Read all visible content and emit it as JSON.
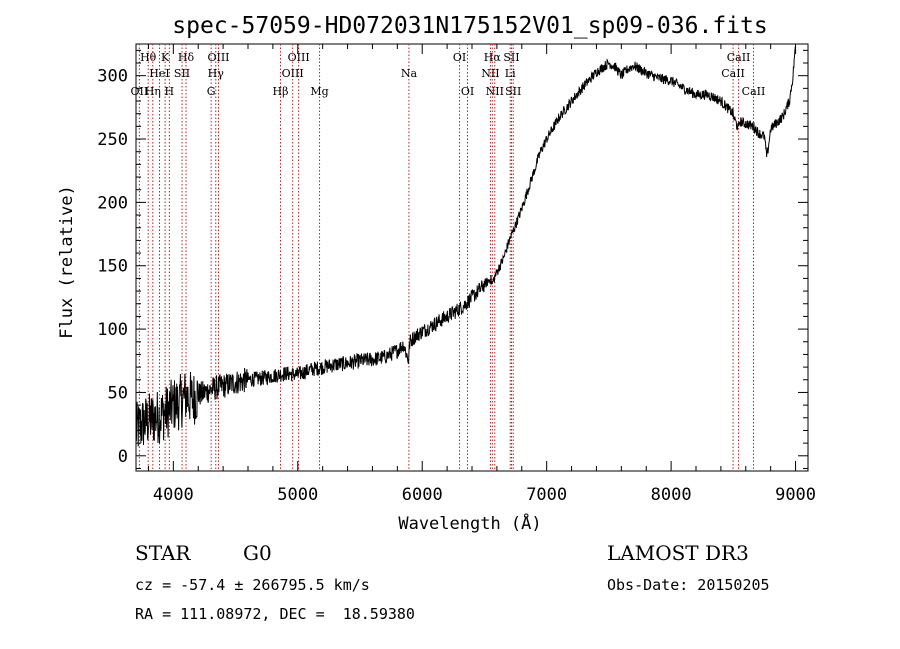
{
  "chart_data": {
    "type": "line",
    "title": "spec-57059-HD072031N175152V01_sp09-036.fits",
    "xlabel": "Wavelength (Å)",
    "ylabel": "Flux (relative)",
    "xlim": [
      3700,
      9100
    ],
    "ylim": [
      -12,
      325
    ],
    "xticks": [
      4000,
      5000,
      6000,
      7000,
      8000,
      9000
    ],
    "yticks": [
      0,
      50,
      100,
      150,
      200,
      250,
      300
    ],
    "series": [
      {
        "name": "spectrum",
        "x": [
          3700,
          3750,
          3800,
          3850,
          3900,
          3950,
          4000,
          4050,
          4100,
          4150,
          4200,
          4250,
          4300,
          4350,
          4400,
          4500,
          4600,
          4700,
          4800,
          4900,
          5000,
          5100,
          5200,
          5300,
          5400,
          5500,
          5600,
          5700,
          5800,
          5850,
          5890,
          5893,
          5900,
          5950,
          6000,
          6100,
          6200,
          6300,
          6350,
          6400,
          6450,
          6500,
          6550,
          6563,
          6570,
          6600,
          6650,
          6700,
          6750,
          6800,
          6850,
          6900,
          6950,
          7000,
          7100,
          7200,
          7300,
          7400,
          7500,
          7550,
          7600,
          7650,
          7700,
          7800,
          7900,
          8000,
          8100,
          8200,
          8300,
          8400,
          8498,
          8500,
          8542,
          8550,
          8600,
          8662,
          8700,
          8750,
          8770,
          8800,
          8850,
          8900,
          8950,
          8980,
          8995,
          9000
        ],
        "y": [
          20,
          25,
          28,
          30,
          32,
          35,
          40,
          42,
          47,
          45,
          48,
          50,
          52,
          54,
          55,
          58,
          60,
          61,
          63,
          65,
          64,
          68,
          70,
          72,
          73,
          75,
          76,
          78,
          83,
          88,
          75,
          80,
          90,
          95,
          98,
          104,
          110,
          116,
          120,
          125,
          130,
          135,
          140,
          135,
          138,
          145,
          155,
          170,
          182,
          195,
          210,
          225,
          240,
          250,
          267,
          280,
          292,
          303,
          310,
          307,
          300,
          305,
          308,
          302,
          298,
          296,
          290,
          285,
          285,
          280,
          270,
          268,
          258,
          264,
          262,
          260,
          255,
          252,
          235,
          258,
          263,
          268,
          280,
          300,
          320,
          330
        ]
      }
    ],
    "lines": [
      {
        "label": "Hθ",
        "wavelength": 3798,
        "row": 1
      },
      {
        "label": "OII",
        "wavelength": 3727,
        "row": 3
      },
      {
        "label": "Hη",
        "wavelength": 3835,
        "row": 3
      },
      {
        "label": "HeI",
        "wavelength": 3889,
        "row": 2
      },
      {
        "label": "K",
        "wavelength": 3934,
        "row": 1
      },
      {
        "label": "H",
        "wavelength": 3968,
        "row": 3
      },
      {
        "label": "SII",
        "wavelength": 4070,
        "row": 2
      },
      {
        "label": "Hδ",
        "wavelength": 4102,
        "row": 1
      },
      {
        "label": "OIII",
        "wavelength": 4363,
        "row": 1
      },
      {
        "label": "Hγ",
        "wavelength": 4341,
        "row": 2
      },
      {
        "label": "G",
        "wavelength": 4304,
        "row": 3
      },
      {
        "label": "Hβ",
        "wavelength": 4861,
        "row": 3
      },
      {
        "label": "OIII",
        "wavelength": 5007,
        "row": 1
      },
      {
        "label": "OIII",
        "wavelength": 4959,
        "row": 2
      },
      {
        "label": "Mg",
        "wavelength": 5175,
        "row": 3
      },
      {
        "label": "Na",
        "wavelength": 5893,
        "row": 2
      },
      {
        "label": "OI",
        "wavelength": 6300,
        "row": 1
      },
      {
        "label": "OI",
        "wavelength": 6364,
        "row": 3
      },
      {
        "label": "Hα",
        "wavelength": 6563,
        "row": 1
      },
      {
        "label": "NII",
        "wavelength": 6548,
        "row": 2
      },
      {
        "label": "NII",
        "wavelength": 6583,
        "row": 3
      },
      {
        "label": "SII",
        "wavelength": 6717,
        "row": 1
      },
      {
        "label": "Li",
        "wavelength": 6707,
        "row": 2
      },
      {
        "label": "SII",
        "wavelength": 6731,
        "row": 3
      },
      {
        "label": "CaII",
        "wavelength": 8542,
        "row": 1
      },
      {
        "label": "CaII",
        "wavelength": 8498,
        "row": 2
      },
      {
        "label": "CaII",
        "wavelength": 8662,
        "row": 3
      }
    ]
  },
  "info": {
    "class": "STAR",
    "subclass": "G0",
    "survey": "LAMOST DR3",
    "cz": "cz = -57.4 ± 266795.5 km/s",
    "obs_date": "Obs-Date: 20150205",
    "radec": "RA = 111.08972, DEC =  18.59380"
  },
  "colors": {
    "spectrum": "#000000",
    "line_marker": "#b22222",
    "axis": "#000000"
  }
}
